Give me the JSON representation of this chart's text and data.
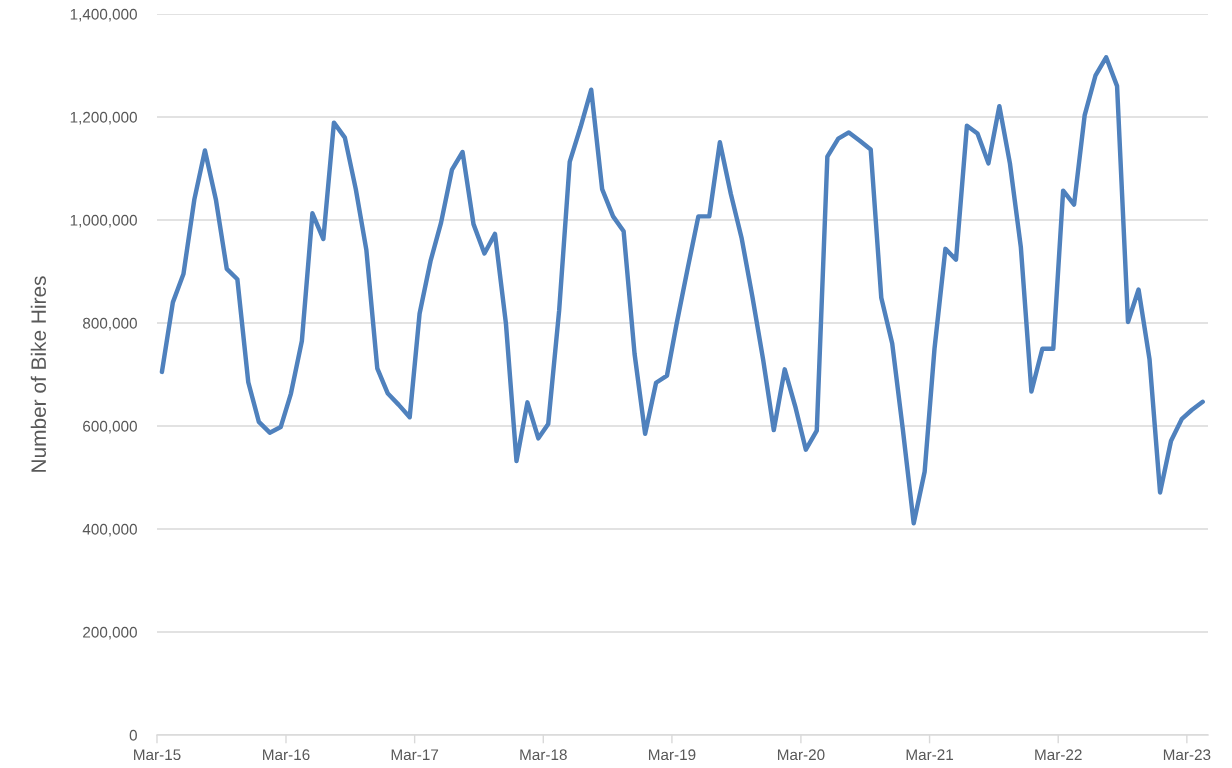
{
  "chart_data": {
    "type": "line",
    "ylabel": "Number of Bike Hires",
    "x": [
      "2015-03-15",
      "2015-04-15",
      "2015-05-15",
      "2015-06-15",
      "2015-07-15",
      "2015-08-15",
      "2015-09-15",
      "2015-10-15",
      "2015-11-15",
      "2015-12-15",
      "2016-01-15",
      "2016-02-15",
      "2016-03-15",
      "2016-04-15",
      "2016-05-15",
      "2016-06-15",
      "2016-07-15",
      "2016-08-15",
      "2016-09-15",
      "2016-10-15",
      "2016-11-15",
      "2016-12-15",
      "2017-01-15",
      "2017-02-15",
      "2017-03-15",
      "2017-04-15",
      "2017-05-15",
      "2017-06-15",
      "2017-07-15",
      "2017-08-15",
      "2017-09-15",
      "2017-10-15",
      "2017-11-15",
      "2017-12-15",
      "2018-01-15",
      "2018-02-15",
      "2018-03-15",
      "2018-04-15",
      "2018-05-15",
      "2018-06-15",
      "2018-07-15",
      "2018-08-15",
      "2018-09-15",
      "2018-10-15",
      "2018-11-15",
      "2018-12-15",
      "2019-01-15",
      "2019-02-15",
      "2019-03-15",
      "2019-04-15",
      "2019-05-15",
      "2019-06-15",
      "2019-07-15",
      "2019-08-15",
      "2019-09-15",
      "2019-10-15",
      "2019-11-15",
      "2019-12-15",
      "2020-01-15",
      "2020-02-15",
      "2020-03-15",
      "2020-04-15",
      "2020-05-15",
      "2020-06-15",
      "2020-07-15",
      "2020-08-15",
      "2020-09-15",
      "2020-10-15",
      "2020-11-15",
      "2020-12-15",
      "2021-01-15",
      "2021-02-15",
      "2021-03-15",
      "2021-04-15",
      "2021-05-15",
      "2021-06-15",
      "2021-07-15",
      "2021-08-15",
      "2021-09-15",
      "2021-10-15",
      "2021-11-15",
      "2021-12-15",
      "2022-01-15",
      "2022-02-15",
      "2022-03-15",
      "2022-04-15",
      "2022-05-15",
      "2022-06-15",
      "2022-07-15",
      "2022-08-15",
      "2022-09-15",
      "2022-10-15",
      "2022-11-15",
      "2022-12-15",
      "2023-01-15",
      "2023-02-15",
      "2023-03-15",
      "2023-04-15"
    ],
    "series": [
      {
        "color": "#4f81bd",
        "values": [
          705000,
          840000,
          895000,
          1040000,
          1135000,
          1040000,
          905000,
          885000,
          685000,
          608000,
          587000,
          598000,
          663000,
          765000,
          1013000,
          963000,
          1189000,
          1160000,
          1060000,
          942000,
          712000,
          663000,
          641000,
          617000,
          818000,
          920000,
          995000,
          1098000,
          1132000,
          992000,
          935000,
          973000,
          799000,
          532000,
          646000,
          576000,
          604000,
          824000,
          1113000,
          1181000,
          1253000,
          1060000,
          1007000,
          978000,
          740000,
          585000,
          684000,
          698000,
          801000,
          907000,
          1007000,
          1007000,
          1151000,
          1051000,
          964000,
          852000,
          728000,
          592000,
          710000,
          635000,
          554000,
          591000,
          1123000,
          1158000,
          1170000,
          1154000,
          1137000,
          849000,
          760000,
          594000,
          411000,
          511000,
          750000,
          944000,
          923000,
          1183000,
          1168000,
          1110000,
          1221000,
          1110000,
          947000,
          667000,
          750000,
          750000,
          1057000,
          1030000,
          1203000,
          1281000,
          1316000,
          1260000,
          802000,
          865000,
          730000,
          471000,
          571000,
          614000,
          631000,
          647000
        ]
      }
    ],
    "xlim": [
      "2015-03-01",
      "2023-04-30"
    ],
    "xticks": [
      {
        "value": "2015-03",
        "label": "Mar-15"
      },
      {
        "value": "2016-03",
        "label": "Mar-16"
      },
      {
        "value": "2017-03",
        "label": "Mar-17"
      },
      {
        "value": "2018-03",
        "label": "Mar-18"
      },
      {
        "value": "2019-03",
        "label": "Mar-19"
      },
      {
        "value": "2020-03",
        "label": "Mar-20"
      },
      {
        "value": "2021-03",
        "label": "Mar-21"
      },
      {
        "value": "2022-03",
        "label": "Mar-22"
      },
      {
        "value": "2023-03",
        "label": "Mar-23"
      }
    ],
    "ylim": [
      0,
      1400000
    ],
    "yticks": [
      0,
      {
        "value": 200000,
        "label": "200,000"
      },
      {
        "value": 400000,
        "label": "400,000"
      },
      {
        "value": 600000,
        "label": "600,000"
      },
      {
        "value": 800000,
        "label": "800,000"
      },
      {
        "value": 1000000,
        "label": "1,000,000"
      },
      {
        "value": 1200000,
        "label": "1,200,000"
      },
      {
        "value": 1400000,
        "label": "1,400,000"
      }
    ],
    "grid": "y",
    "line_style": "solid"
  }
}
